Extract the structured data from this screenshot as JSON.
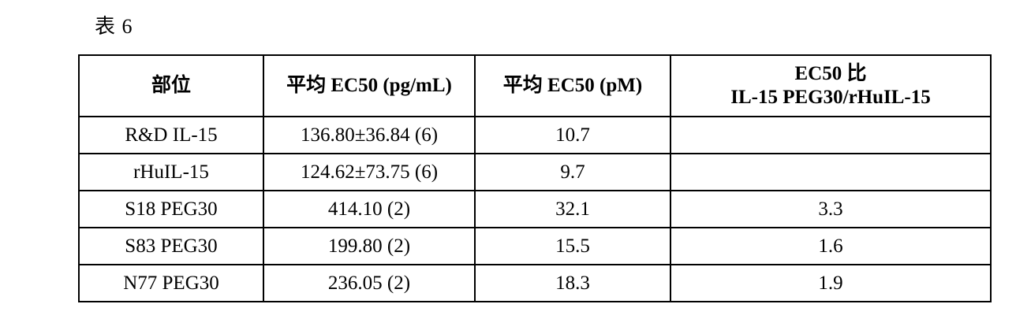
{
  "caption": "表 6",
  "table": {
    "headers": {
      "site": "部位",
      "avg_ec50_pgml": "平均 EC50 (pg/mL)",
      "avg_ec50_pm": "平均 EC50 (pM)",
      "ratio_line1": "EC50 比",
      "ratio_line2": "IL-15 PEG30/rHuIL-15"
    },
    "rows": [
      {
        "site": "R&D IL-15",
        "pgml": "136.80±36.84 (6)",
        "pm": "10.7",
        "ratio": ""
      },
      {
        "site": "rHuIL-15",
        "pgml": "124.62±73.75 (6)",
        "pm": "9.7",
        "ratio": ""
      },
      {
        "site": "S18 PEG30",
        "pgml": "414.10 (2)",
        "pm": "32.1",
        "ratio": "3.3"
      },
      {
        "site": "S83 PEG30",
        "pgml": "199.80 (2)",
        "pm": "15.5",
        "ratio": "1.6"
      },
      {
        "site": "N77 PEG30",
        "pgml": "236.05 (2)",
        "pm": "18.3",
        "ratio": "1.9"
      }
    ]
  }
}
